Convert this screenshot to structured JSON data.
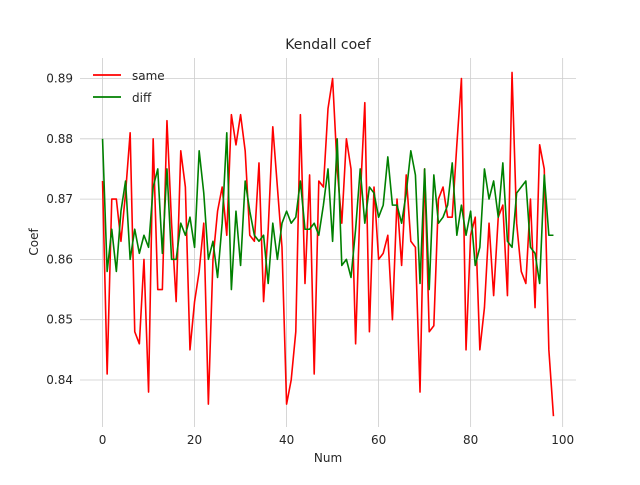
{
  "chart_data": {
    "type": "line",
    "title": "Kendall coef",
    "xlabel": "Num",
    "ylabel": "Coef",
    "xlim": [
      -4.9,
      102.9
    ],
    "ylim": [
      0.8322,
      0.8934
    ],
    "xticks": [
      0,
      20,
      40,
      60,
      80,
      100
    ],
    "yticks": [
      0.84,
      0.85,
      0.86,
      0.87,
      0.88,
      0.89
    ],
    "xtick_labels": [
      "0",
      "20",
      "40",
      "60",
      "80",
      "100"
    ],
    "ytick_labels": [
      "0.84",
      "0.85",
      "0.86",
      "0.87",
      "0.88",
      "0.89"
    ],
    "grid": true,
    "legend_position": "upper-left",
    "series": [
      {
        "name": "same",
        "color": "#ff0000",
        "x": [
          0,
          1,
          2,
          3,
          4,
          5,
          6,
          7,
          8,
          9,
          10,
          11,
          12,
          13,
          14,
          15,
          16,
          17,
          18,
          19,
          20,
          21,
          22,
          23,
          24,
          25,
          26,
          27,
          28,
          29,
          30,
          31,
          32,
          33,
          34,
          35,
          36,
          37,
          38,
          39,
          40,
          41,
          42,
          43,
          44,
          45,
          46,
          47,
          48,
          49,
          50,
          51,
          52,
          53,
          54,
          55,
          56,
          57,
          58,
          59,
          60,
          61,
          62,
          63,
          64,
          65,
          66,
          67,
          68,
          69,
          70,
          71,
          72,
          73,
          74,
          75,
          76,
          77,
          78,
          79,
          80,
          81,
          82,
          83,
          84,
          85,
          86,
          87,
          88,
          89,
          90,
          91,
          92,
          93,
          94,
          95,
          96,
          97,
          98
        ],
        "values": [
          0.873,
          0.841,
          0.87,
          0.87,
          0.863,
          0.871,
          0.881,
          0.848,
          0.846,
          0.86,
          0.838,
          0.88,
          0.855,
          0.855,
          0.883,
          0.866,
          0.853,
          0.878,
          0.872,
          0.845,
          0.853,
          0.858,
          0.866,
          0.836,
          0.86,
          0.868,
          0.872,
          0.864,
          0.884,
          0.879,
          0.884,
          0.878,
          0.864,
          0.863,
          0.876,
          0.853,
          0.865,
          0.882,
          0.872,
          0.862,
          0.836,
          0.84,
          0.848,
          0.884,
          0.856,
          0.874,
          0.841,
          0.873,
          0.872,
          0.885,
          0.89,
          0.875,
          0.866,
          0.88,
          0.875,
          0.846,
          0.87,
          0.886,
          0.848,
          0.872,
          0.86,
          0.861,
          0.864,
          0.85,
          0.87,
          0.859,
          0.874,
          0.863,
          0.862,
          0.838,
          0.875,
          0.848,
          0.849,
          0.87,
          0.872,
          0.867,
          0.867,
          0.879,
          0.89,
          0.845,
          0.864,
          0.867,
          0.845,
          0.852,
          0.866,
          0.854,
          0.867,
          0.869,
          0.854,
          0.891,
          0.866,
          0.858,
          0.856,
          0.87,
          0.852,
          0.879,
          0.875,
          0.845,
          0.834
        ]
      },
      {
        "name": "diff",
        "color": "#008000",
        "x": [
          0,
          1,
          2,
          3,
          4,
          5,
          6,
          7,
          8,
          9,
          10,
          11,
          12,
          13,
          14,
          15,
          16,
          17,
          18,
          19,
          20,
          21,
          22,
          23,
          24,
          25,
          26,
          27,
          28,
          29,
          30,
          31,
          32,
          33,
          34,
          35,
          36,
          37,
          38,
          39,
          40,
          41,
          42,
          43,
          44,
          45,
          46,
          47,
          48,
          49,
          50,
          51,
          52,
          53,
          54,
          55,
          56,
          57,
          58,
          59,
          60,
          61,
          62,
          63,
          64,
          65,
          66,
          67,
          68,
          69,
          70,
          71,
          72,
          73,
          74,
          75,
          76,
          77,
          78,
          79,
          80,
          81,
          82,
          83,
          84,
          85,
          86,
          87,
          88,
          89,
          90,
          91,
          92,
          93,
          94,
          95,
          96,
          97,
          98
        ],
        "values": [
          0.88,
          0.858,
          0.865,
          0.858,
          0.868,
          0.873,
          0.86,
          0.865,
          0.861,
          0.864,
          0.862,
          0.872,
          0.875,
          0.861,
          0.875,
          0.86,
          0.86,
          0.866,
          0.864,
          0.867,
          0.862,
          0.878,
          0.871,
          0.86,
          0.863,
          0.857,
          0.866,
          0.881,
          0.855,
          0.868,
          0.859,
          0.873,
          0.868,
          0.864,
          0.863,
          0.864,
          0.856,
          0.866,
          0.86,
          0.866,
          0.868,
          0.866,
          0.867,
          0.873,
          0.865,
          0.865,
          0.866,
          0.864,
          0.869,
          0.875,
          0.863,
          0.88,
          0.859,
          0.86,
          0.857,
          0.865,
          0.875,
          0.866,
          0.872,
          0.871,
          0.867,
          0.869,
          0.877,
          0.869,
          0.869,
          0.866,
          0.871,
          0.878,
          0.874,
          0.856,
          0.875,
          0.855,
          0.874,
          0.866,
          0.867,
          0.869,
          0.876,
          0.864,
          0.869,
          0.864,
          0.868,
          0.859,
          0.862,
          0.875,
          0.87,
          0.873,
          0.867,
          0.876,
          0.863,
          0.862,
          0.871,
          0.872,
          0.873,
          0.862,
          0.861,
          0.856,
          0.874,
          0.864,
          0.864
        ]
      }
    ]
  }
}
